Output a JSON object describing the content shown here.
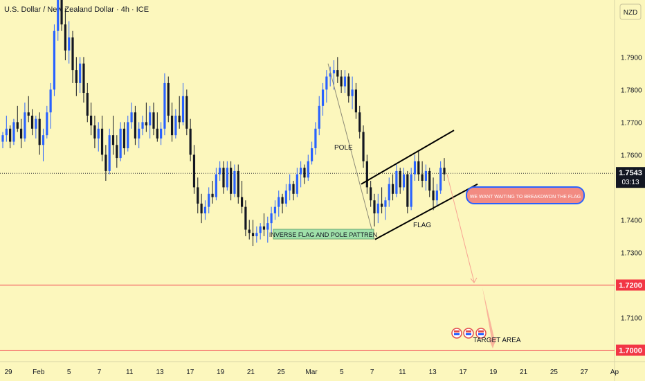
{
  "title": "U.S. Dollar / New Zealand Dollar · 4h · ICE",
  "currency_badge": "NZD",
  "price_label": "1.7543",
  "countdown": "03:13",
  "chart_data": {
    "type": "candlestick",
    "y_axis": {
      "range": [
        1.6965,
        1.8075
      ],
      "ticks": [
        "1.7900",
        "1.7800",
        "1.7700",
        "1.7600",
        "1.7400",
        "1.7300",
        "1.7100"
      ]
    },
    "x_axis": {
      "ticks": [
        "29",
        "Feb",
        "5",
        "7",
        "11",
        "13",
        "17",
        "19",
        "21",
        "25",
        "Mar",
        "5",
        "7",
        "11",
        "13",
        "17",
        "19",
        "21",
        "25",
        "27",
        "Ap"
      ]
    },
    "current_price": 1.7543,
    "horizontal_levels": [
      {
        "value": 1.72,
        "label": "1.7200"
      },
      {
        "value": 1.7,
        "label": "1.7000"
      }
    ],
    "annotations": {
      "pole_label": "POLE",
      "flag_label": "FLAG",
      "pattern_label": "INVERSE FLAG AND POLE PATTREN",
      "callout": "WE WANT WAITING TO BREAKDWON THE FLAG",
      "target_label": "TARGET AREA"
    },
    "colors": {
      "up": "#2962ff",
      "down": "#131722",
      "level_line": "#f23645",
      "price_tag": "#131722",
      "level_tag": "#f23645",
      "callout_bg": "#f28b82",
      "callout_border": "#2962ff",
      "pattern_bg": "#9fe0a9",
      "projection": "#f7a392"
    },
    "candles": [
      [
        1.764,
        1.767,
        1.762,
        1.766
      ],
      [
        1.766,
        1.772,
        1.764,
        1.768
      ],
      [
        1.768,
        1.769,
        1.762,
        1.764
      ],
      [
        1.764,
        1.771,
        1.763,
        1.77
      ],
      [
        1.77,
        1.775,
        1.767,
        1.768
      ],
      [
        1.768,
        1.771,
        1.762,
        1.765
      ],
      [
        1.765,
        1.776,
        1.764,
        1.773
      ],
      [
        1.773,
        1.778,
        1.77,
        1.772
      ],
      [
        1.772,
        1.774,
        1.766,
        1.768
      ],
      [
        1.768,
        1.772,
        1.765,
        1.771
      ],
      [
        1.771,
        1.773,
        1.76,
        1.763
      ],
      [
        1.763,
        1.768,
        1.758,
        1.766
      ],
      [
        1.766,
        1.775,
        1.765,
        1.773
      ],
      [
        1.773,
        1.782,
        1.768,
        1.78
      ],
      [
        1.78,
        1.8,
        1.778,
        1.798
      ],
      [
        1.798,
        1.812,
        1.795,
        1.808
      ],
      [
        1.808,
        1.81,
        1.798,
        1.8
      ],
      [
        1.8,
        1.805,
        1.789,
        1.792
      ],
      [
        1.792,
        1.801,
        1.788,
        1.796
      ],
      [
        1.796,
        1.798,
        1.782,
        1.786
      ],
      [
        1.786,
        1.79,
        1.778,
        1.782
      ],
      [
        1.782,
        1.79,
        1.779,
        1.788
      ],
      [
        1.788,
        1.79,
        1.776,
        1.779
      ],
      [
        1.779,
        1.782,
        1.77,
        1.772
      ],
      [
        1.772,
        1.776,
        1.766,
        1.769
      ],
      [
        1.769,
        1.772,
        1.762,
        1.765
      ],
      [
        1.765,
        1.77,
        1.761,
        1.768
      ],
      [
        1.768,
        1.772,
        1.758,
        1.76
      ],
      [
        1.76,
        1.763,
        1.752,
        1.755
      ],
      [
        1.755,
        1.768,
        1.754,
        1.766
      ],
      [
        1.766,
        1.772,
        1.76,
        1.763
      ],
      [
        1.763,
        1.766,
        1.756,
        1.759
      ],
      [
        1.759,
        1.77,
        1.758,
        1.768
      ],
      [
        1.768,
        1.77,
        1.76,
        1.762
      ],
      [
        1.762,
        1.772,
        1.761,
        1.77
      ],
      [
        1.77,
        1.776,
        1.768,
        1.773
      ],
      [
        1.773,
        1.775,
        1.763,
        1.765
      ],
      [
        1.765,
        1.77,
        1.762,
        1.768
      ],
      [
        1.768,
        1.772,
        1.766,
        1.77
      ],
      [
        1.77,
        1.776,
        1.767,
        1.769
      ],
      [
        1.769,
        1.775,
        1.765,
        1.773
      ],
      [
        1.773,
        1.776,
        1.766,
        1.768
      ],
      [
        1.768,
        1.773,
        1.764,
        1.765
      ],
      [
        1.765,
        1.77,
        1.763,
        1.768
      ],
      [
        1.768,
        1.785,
        1.766,
        1.782
      ],
      [
        1.782,
        1.784,
        1.77,
        1.772
      ],
      [
        1.772,
        1.776,
        1.764,
        1.766
      ],
      [
        1.766,
        1.774,
        1.765,
        1.772
      ],
      [
        1.772,
        1.778,
        1.768,
        1.77
      ],
      [
        1.77,
        1.782,
        1.769,
        1.778
      ],
      [
        1.778,
        1.78,
        1.766,
        1.768
      ],
      [
        1.768,
        1.771,
        1.758,
        1.76
      ],
      [
        1.76,
        1.763,
        1.748,
        1.75
      ],
      [
        1.75,
        1.753,
        1.742,
        1.745
      ],
      [
        1.745,
        1.748,
        1.739,
        1.742
      ],
      [
        1.742,
        1.746,
        1.74,
        1.744
      ],
      [
        1.744,
        1.75,
        1.742,
        1.748
      ],
      [
        1.748,
        1.752,
        1.745,
        1.747
      ],
      [
        1.747,
        1.756,
        1.746,
        1.754
      ],
      [
        1.754,
        1.758,
        1.752,
        1.756
      ],
      [
        1.756,
        1.758,
        1.748,
        1.75
      ],
      [
        1.75,
        1.758,
        1.749,
        1.756
      ],
      [
        1.756,
        1.758,
        1.746,
        1.748
      ],
      [
        1.748,
        1.757,
        1.747,
        1.755
      ],
      [
        1.755,
        1.757,
        1.745,
        1.747
      ],
      [
        1.747,
        1.752,
        1.742,
        1.744
      ],
      [
        1.744,
        1.746,
        1.735,
        1.737
      ],
      [
        1.737,
        1.74,
        1.734,
        1.736
      ],
      [
        1.736,
        1.74,
        1.732,
        1.735
      ],
      [
        1.735,
        1.738,
        1.733,
        1.736
      ],
      [
        1.736,
        1.739,
        1.734,
        1.738
      ],
      [
        1.738,
        1.742,
        1.735,
        1.737
      ],
      [
        1.737,
        1.741,
        1.733,
        1.739
      ],
      [
        1.739,
        1.744,
        1.736,
        1.742
      ],
      [
        1.742,
        1.746,
        1.74,
        1.744
      ],
      [
        1.744,
        1.749,
        1.741,
        1.747
      ],
      [
        1.747,
        1.748,
        1.742,
        1.745
      ],
      [
        1.745,
        1.751,
        1.744,
        1.749
      ],
      [
        1.749,
        1.754,
        1.746,
        1.751
      ],
      [
        1.751,
        1.752,
        1.746,
        1.748
      ],
      [
        1.748,
        1.756,
        1.747,
        1.754
      ],
      [
        1.754,
        1.758,
        1.75,
        1.756
      ],
      [
        1.756,
        1.757,
        1.751,
        1.753
      ],
      [
        1.753,
        1.76,
        1.752,
        1.758
      ],
      [
        1.758,
        1.764,
        1.757,
        1.762
      ],
      [
        1.762,
        1.77,
        1.76,
        1.768
      ],
      [
        1.768,
        1.778,
        1.766,
        1.775
      ],
      [
        1.775,
        1.782,
        1.772,
        1.78
      ],
      [
        1.78,
        1.786,
        1.776,
        1.784
      ],
      [
        1.784,
        1.787,
        1.781,
        1.785
      ],
      [
        1.785,
        1.789,
        1.78,
        1.786
      ],
      [
        1.786,
        1.79,
        1.782,
        1.784
      ],
      [
        1.784,
        1.786,
        1.779,
        1.781
      ],
      [
        1.781,
        1.786,
        1.779,
        1.784
      ],
      [
        1.784,
        1.785,
        1.776,
        1.778
      ],
      [
        1.778,
        1.784,
        1.774,
        1.78
      ],
      [
        1.78,
        1.782,
        1.771,
        1.773
      ],
      [
        1.773,
        1.775,
        1.765,
        1.767
      ],
      [
        1.767,
        1.769,
        1.756,
        1.758
      ],
      [
        1.758,
        1.76,
        1.748,
        1.75
      ],
      [
        1.75,
        1.752,
        1.744,
        1.746
      ],
      [
        1.746,
        1.748,
        1.738,
        1.742
      ],
      [
        1.742,
        1.748,
        1.739,
        1.745
      ],
      [
        1.745,
        1.75,
        1.742,
        1.744
      ],
      [
        1.744,
        1.747,
        1.74,
        1.746
      ],
      [
        1.746,
        1.753,
        1.744,
        1.751
      ],
      [
        1.751,
        1.754,
        1.746,
        1.748
      ],
      [
        1.748,
        1.757,
        1.747,
        1.755
      ],
      [
        1.755,
        1.756,
        1.748,
        1.75
      ],
      [
        1.75,
        1.756,
        1.749,
        1.754
      ],
      [
        1.754,
        1.755,
        1.742,
        1.744
      ],
      [
        1.744,
        1.756,
        1.743,
        1.754
      ],
      [
        1.754,
        1.76,
        1.752,
        1.758
      ],
      [
        1.758,
        1.761,
        1.752,
        1.754
      ],
      [
        1.754,
        1.758,
        1.75,
        1.752
      ],
      [
        1.752,
        1.757,
        1.749,
        1.755
      ],
      [
        1.755,
        1.756,
        1.747,
        1.749
      ],
      [
        1.749,
        1.753,
        1.743,
        1.746
      ],
      [
        1.746,
        1.751,
        1.744,
        1.749
      ],
      [
        1.749,
        1.758,
        1.748,
        1.756
      ],
      [
        1.756,
        1.759,
        1.752,
        1.754
      ]
    ]
  }
}
